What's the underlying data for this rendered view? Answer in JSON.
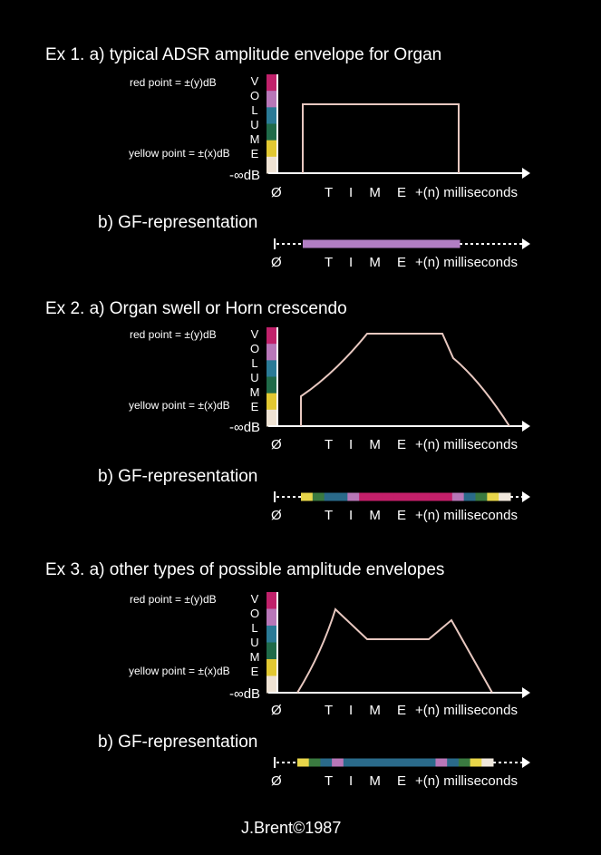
{
  "labels": {
    "red_point": "red point = ±(y)dB",
    "yellow_point": "yellow point = ±(x)dB",
    "volume_letters": [
      "V",
      "O",
      "L",
      "U",
      "M",
      "E"
    ],
    "neg_inf": "-∞dB",
    "origin": "Ø",
    "time": "T I M E",
    "ms": "+(n) milliseconds",
    "gf": "b) GF-representation"
  },
  "colors": {
    "volume_scale": [
      "#c0216a",
      "#b877b8",
      "#2a7a96",
      "#1f6a48",
      "#e2c832",
      "#efe3d4"
    ],
    "envelope_line": "#e8c8c0"
  },
  "examples": [
    {
      "title": "Ex 1.  a) typical ADSR amplitude envelope for Organ",
      "gf_colors": [
        "#b27ec4"
      ]
    },
    {
      "title": "Ex 2.  a) Organ swell or Horn crescendo",
      "gf_colors": [
        "#e8d64a",
        "#3a7a40",
        "#2a6a8a",
        "#2a6a8a",
        "#b877b8",
        "#c41f6a",
        "#c41f6a",
        "#c41f6a",
        "#c41f6a",
        "#c41f6a",
        "#c41f6a",
        "#c41f6a",
        "#c41f6a",
        "#b877b8",
        "#2a6a8a",
        "#3a7a40",
        "#e8d64a",
        "#f0e8dc"
      ]
    },
    {
      "title": "Ex 3.  a) other types of possible amplitude envelopes",
      "gf_colors": [
        "#e8d64a",
        "#3a7a40",
        "#2a6a8a",
        "#b877b8",
        "#2a6a8a",
        "#2a6a8a",
        "#2a6a8a",
        "#2a6a8a",
        "#2a6a8a",
        "#2a6a8a",
        "#2a6a8a",
        "#2a6a8a",
        "#b877b8",
        "#2a6a8a",
        "#3a7a40",
        "#e8d64a",
        "#f0e8dc"
      ]
    }
  ],
  "credit": "J.Brent©1987"
}
